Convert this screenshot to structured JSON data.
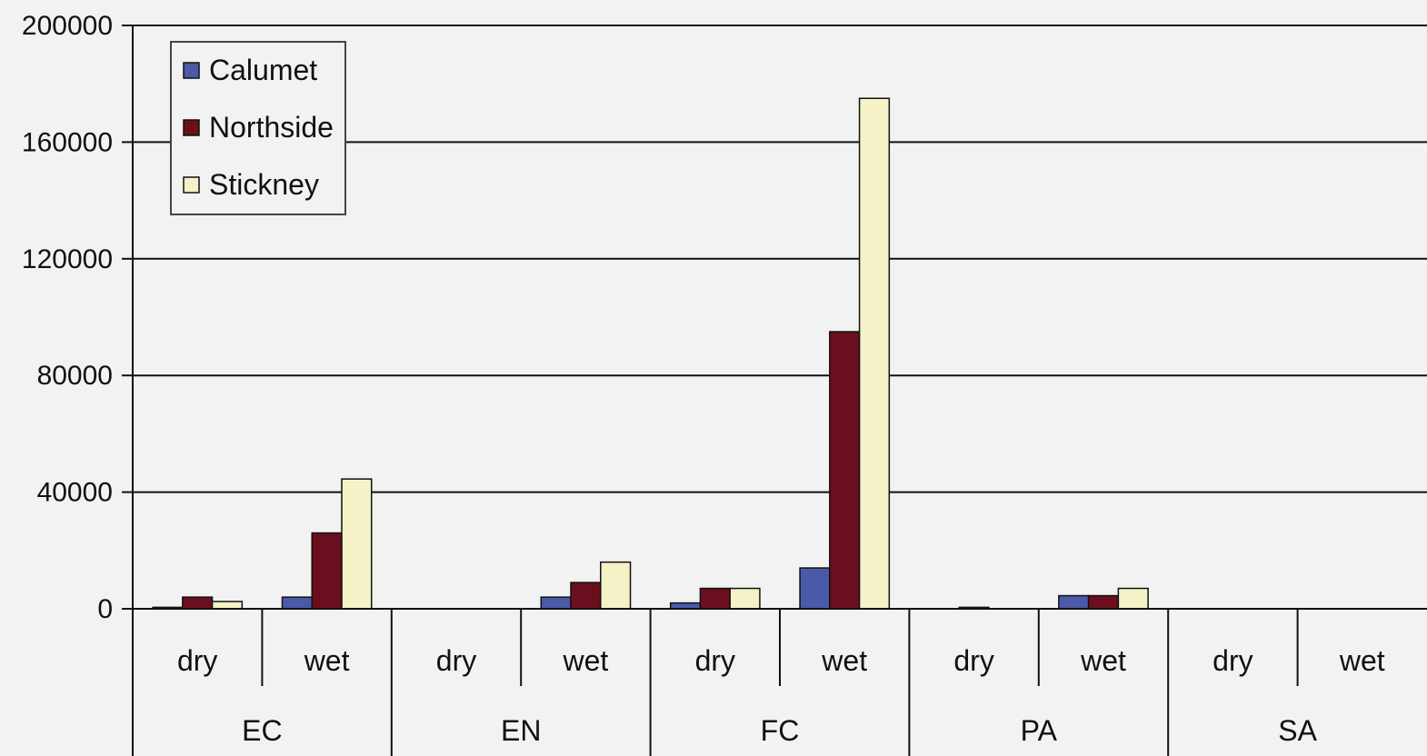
{
  "chart_data": {
    "type": "bar",
    "groups": [
      "EC",
      "EN",
      "FC",
      "PA",
      "SA"
    ],
    "categories": [
      "dry",
      "wet",
      "dry",
      "wet",
      "dry",
      "wet",
      "dry",
      "wet",
      "dry",
      "wet"
    ],
    "series": [
      {
        "name": "Calumet",
        "color": "#4a5aa8",
        "values": [
          500,
          4000,
          0,
          4000,
          2000,
          14000,
          0,
          4500,
          0,
          0
        ]
      },
      {
        "name": "Northside",
        "color": "#6b0f1e",
        "values": [
          4000,
          26000,
          0,
          9000,
          7000,
          95000,
          500,
          4500,
          0,
          0
        ]
      },
      {
        "name": "Stickney",
        "color": "#f4f2c6",
        "values": [
          2500,
          44500,
          0,
          16000,
          7000,
          175000,
          0,
          7000,
          0,
          0
        ]
      }
    ],
    "ylim": [
      0,
      200000
    ],
    "yticks": [
      "0",
      "40000",
      "80000",
      "120000",
      "160000",
      "200000"
    ],
    "ytick_values": [
      0,
      40000,
      80000,
      120000,
      160000,
      200000
    ],
    "grid": true,
    "legend_position": "top-left"
  }
}
